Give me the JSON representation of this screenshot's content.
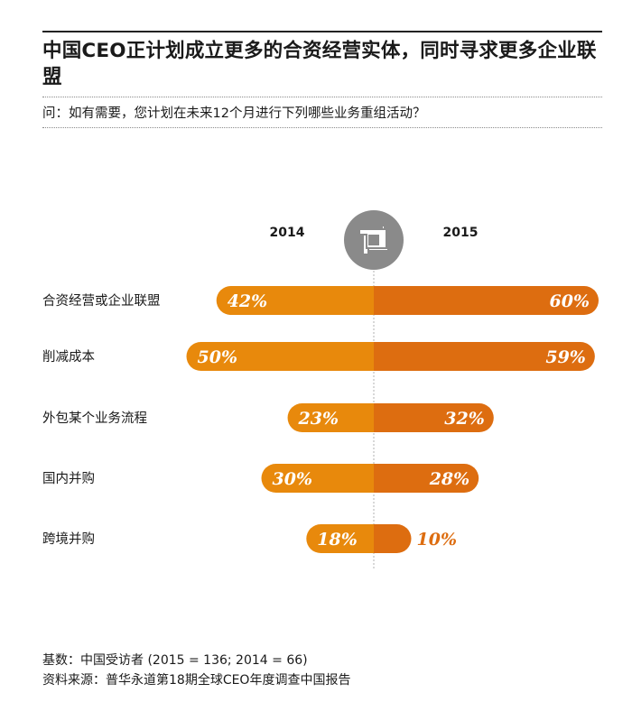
{
  "title": "中国CEO正计划成立更多的合资经营实体，同时寻求更多企业联盟",
  "question": "问：如有需要，您计划在未来12个月进行下列哪些业务重组活动？",
  "legend_icon": "hands-stacked-icon",
  "colors": {
    "left": "#e8890c",
    "right": "#dd6d10",
    "label_text": "#ffffff",
    "outside_label": "#dd6d10",
    "icon": "#8a8a8a",
    "center_line": "#b0b0b0"
  },
  "chart_data": {
    "type": "bar",
    "orientation": "horizontal-butterfly",
    "categories": [
      "合资经营或企业联盟",
      "削减成本",
      "外包某个业务流程",
      "国内并购",
      "跨境并购"
    ],
    "series": [
      {
        "name": "2014",
        "side": "left",
        "values": [
          42,
          50,
          23,
          30,
          18
        ],
        "labels": [
          "42%",
          "50%",
          "23%",
          "30%",
          "18%"
        ]
      },
      {
        "name": "2015",
        "side": "right",
        "values": [
          60,
          59,
          32,
          28,
          10
        ],
        "labels": [
          "60%",
          "59%",
          "32%",
          "28%",
          "10%"
        ]
      }
    ],
    "unit": "%",
    "xlim": [
      0,
      60
    ],
    "grid": false,
    "legend": "top-center"
  },
  "footer": {
    "base": "基数：中国受访者 (2015 = 136; 2014 = 66)",
    "source": "资料来源：普华永道第18期全球CEO年度调查中国报告"
  }
}
